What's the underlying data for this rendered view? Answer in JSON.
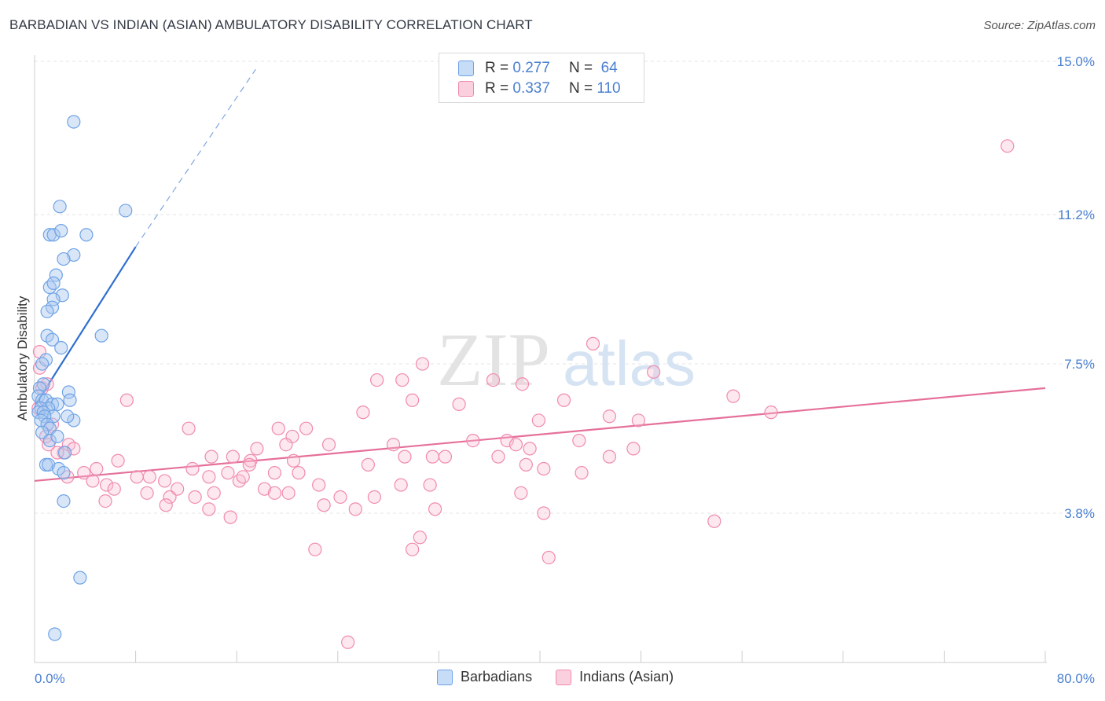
{
  "header": {
    "title": "BARBADIAN VS INDIAN (ASIAN) AMBULATORY DISABILITY CORRELATION CHART",
    "source": "Source: ZipAtlas.com"
  },
  "legend": {
    "r_label": "R =",
    "n_label": "N =",
    "rows": [
      {
        "r": "0.277",
        "n": "64",
        "color": "#6fa3e6"
      },
      {
        "r": "0.337",
        "n": "110",
        "color": "#f08aae"
      }
    ]
  },
  "bottom_legend": [
    "Barbadians",
    "Indians (Asian)"
  ],
  "watermark": {
    "zip": "ZIP",
    "atlas": "atlas"
  },
  "chart_data": {
    "type": "scatter",
    "title": "BARBADIAN VS INDIAN (ASIAN) AMBULATORY DISABILITY CORRELATION CHART",
    "xlabel": "",
    "ylabel": "Ambulatory Disability",
    "xlim": [
      0,
      80
    ],
    "ylim": [
      0,
      15.5
    ],
    "x_tick_labels": [
      "0.0%",
      "80.0%"
    ],
    "y_ticks": [
      3.8,
      7.5,
      11.2,
      15.0
    ],
    "y_tick_labels": [
      "3.8%",
      "7.5%",
      "11.2%",
      "15.0%"
    ],
    "grid": true,
    "legend_placement": "top-center",
    "series": [
      {
        "name": "Barbadians",
        "color": "#6fa3e6",
        "r": 0.277,
        "n": 64,
        "trend": {
          "x0": 0.1,
          "y0": 6.5,
          "x1": 8.0,
          "y1": 10.4,
          "dash_to_x": 17.5,
          "dash_to_y": 14.8
        },
        "points": [
          [
            3.1,
            13.5
          ],
          [
            2.0,
            11.4
          ],
          [
            7.2,
            11.3
          ],
          [
            1.2,
            10.7
          ],
          [
            1.5,
            10.7
          ],
          [
            2.1,
            10.8
          ],
          [
            4.1,
            10.7
          ],
          [
            3.1,
            10.2
          ],
          [
            2.3,
            10.1
          ],
          [
            1.7,
            9.7
          ],
          [
            1.2,
            9.4
          ],
          [
            1.5,
            9.5
          ],
          [
            2.2,
            9.2
          ],
          [
            1.5,
            9.1
          ],
          [
            1.4,
            8.9
          ],
          [
            1.0,
            8.8
          ],
          [
            1.0,
            8.2
          ],
          [
            5.3,
            8.2
          ],
          [
            1.4,
            8.1
          ],
          [
            2.1,
            7.9
          ],
          [
            0.9,
            7.6
          ],
          [
            0.6,
            7.5
          ],
          [
            0.7,
            7.0
          ],
          [
            0.4,
            6.9
          ],
          [
            0.3,
            6.7
          ],
          [
            0.6,
            6.6
          ],
          [
            0.9,
            6.6
          ],
          [
            1.4,
            6.5
          ],
          [
            1.8,
            6.5
          ],
          [
            1.1,
            6.4
          ],
          [
            0.5,
            6.4
          ],
          [
            0.3,
            6.3
          ],
          [
            0.7,
            6.3
          ],
          [
            1.5,
            6.2
          ],
          [
            0.8,
            6.2
          ],
          [
            0.5,
            6.1
          ],
          [
            1.0,
            6.0
          ],
          [
            1.2,
            5.9
          ],
          [
            0.6,
            5.8
          ],
          [
            2.7,
            6.8
          ],
          [
            2.8,
            6.6
          ],
          [
            3.1,
            6.1
          ],
          [
            2.6,
            6.2
          ],
          [
            1.2,
            5.6
          ],
          [
            1.8,
            5.7
          ],
          [
            2.4,
            5.3
          ],
          [
            0.9,
            5.0
          ],
          [
            1.1,
            5.0
          ],
          [
            1.9,
            4.9
          ],
          [
            2.3,
            4.8
          ],
          [
            2.3,
            4.1
          ],
          [
            3.6,
            2.2
          ],
          [
            1.6,
            0.8
          ]
        ]
      },
      {
        "name": "Indians (Asian)",
        "color": "#f08aae",
        "r": 0.337,
        "n": 110,
        "trend": {
          "x0": 0,
          "y0": 4.6,
          "x1": 80,
          "y1": 6.9
        },
        "points": [
          [
            77.0,
            12.9
          ],
          [
            44.2,
            8.0
          ],
          [
            49.0,
            7.3
          ],
          [
            30.7,
            7.5
          ],
          [
            27.1,
            7.1
          ],
          [
            29.1,
            7.1
          ],
          [
            36.3,
            7.1
          ],
          [
            38.6,
            7.0
          ],
          [
            55.3,
            6.7
          ],
          [
            58.3,
            6.3
          ],
          [
            45.5,
            6.2
          ],
          [
            41.9,
            6.6
          ],
          [
            29.9,
            6.6
          ],
          [
            33.6,
            6.5
          ],
          [
            26.0,
            6.3
          ],
          [
            39.9,
            6.1
          ],
          [
            47.8,
            6.1
          ],
          [
            7.3,
            6.6
          ],
          [
            12.2,
            5.9
          ],
          [
            19.3,
            5.9
          ],
          [
            21.5,
            5.9
          ],
          [
            20.4,
            5.7
          ],
          [
            34.7,
            5.6
          ],
          [
            37.4,
            5.6
          ],
          [
            43.1,
            5.6
          ],
          [
            38.1,
            5.5
          ],
          [
            39.2,
            5.4
          ],
          [
            28.4,
            5.5
          ],
          [
            19.9,
            5.5
          ],
          [
            23.3,
            5.5
          ],
          [
            17.6,
            5.4
          ],
          [
            14.0,
            5.2
          ],
          [
            15.7,
            5.2
          ],
          [
            17.1,
            5.1
          ],
          [
            20.5,
            5.1
          ],
          [
            29.3,
            5.2
          ],
          [
            31.5,
            5.2
          ],
          [
            32.5,
            5.2
          ],
          [
            36.7,
            5.2
          ],
          [
            45.5,
            5.2
          ],
          [
            47.4,
            5.4
          ],
          [
            38.9,
            5.0
          ],
          [
            26.4,
            5.0
          ],
          [
            17.0,
            5.0
          ],
          [
            12.5,
            4.9
          ],
          [
            13.8,
            4.7
          ],
          [
            15.3,
            4.8
          ],
          [
            8.1,
            4.7
          ],
          [
            9.1,
            4.7
          ],
          [
            10.3,
            4.6
          ],
          [
            6.6,
            5.1
          ],
          [
            4.9,
            4.9
          ],
          [
            2.6,
            4.7
          ],
          [
            3.9,
            4.8
          ],
          [
            4.6,
            4.6
          ],
          [
            5.7,
            4.5
          ],
          [
            6.3,
            4.4
          ],
          [
            11.3,
            4.4
          ],
          [
            8.9,
            4.3
          ],
          [
            10.7,
            4.2
          ],
          [
            12.7,
            4.2
          ],
          [
            14.2,
            4.3
          ],
          [
            16.2,
            4.6
          ],
          [
            16.5,
            4.7
          ],
          [
            19.0,
            4.8
          ],
          [
            20.9,
            4.8
          ],
          [
            18.2,
            4.4
          ],
          [
            19.0,
            4.3
          ],
          [
            20.1,
            4.3
          ],
          [
            22.5,
            4.5
          ],
          [
            24.2,
            4.2
          ],
          [
            26.9,
            4.2
          ],
          [
            29.0,
            4.5
          ],
          [
            31.3,
            4.5
          ],
          [
            38.5,
            4.3
          ],
          [
            40.3,
            4.9
          ],
          [
            43.3,
            4.8
          ],
          [
            22.9,
            4.0
          ],
          [
            25.4,
            3.9
          ],
          [
            31.7,
            3.9
          ],
          [
            40.3,
            3.8
          ],
          [
            53.8,
            3.6
          ],
          [
            13.8,
            3.9
          ],
          [
            15.5,
            3.7
          ],
          [
            10.4,
            4.0
          ],
          [
            5.6,
            4.1
          ],
          [
            22.2,
            2.9
          ],
          [
            29.9,
            2.9
          ],
          [
            30.5,
            3.2
          ],
          [
            40.7,
            2.7
          ],
          [
            24.8,
            0.6
          ],
          [
            2.3,
            5.3
          ],
          [
            1.8,
            5.3
          ],
          [
            1.1,
            5.5
          ],
          [
            2.7,
            5.5
          ],
          [
            3.1,
            5.4
          ],
          [
            0.3,
            6.4
          ],
          [
            0.6,
            6.9
          ],
          [
            1.0,
            7.0
          ],
          [
            0.4,
            7.4
          ],
          [
            1.4,
            6.0
          ],
          [
            0.9,
            5.7
          ],
          [
            0.4,
            7.8
          ]
        ]
      }
    ]
  }
}
